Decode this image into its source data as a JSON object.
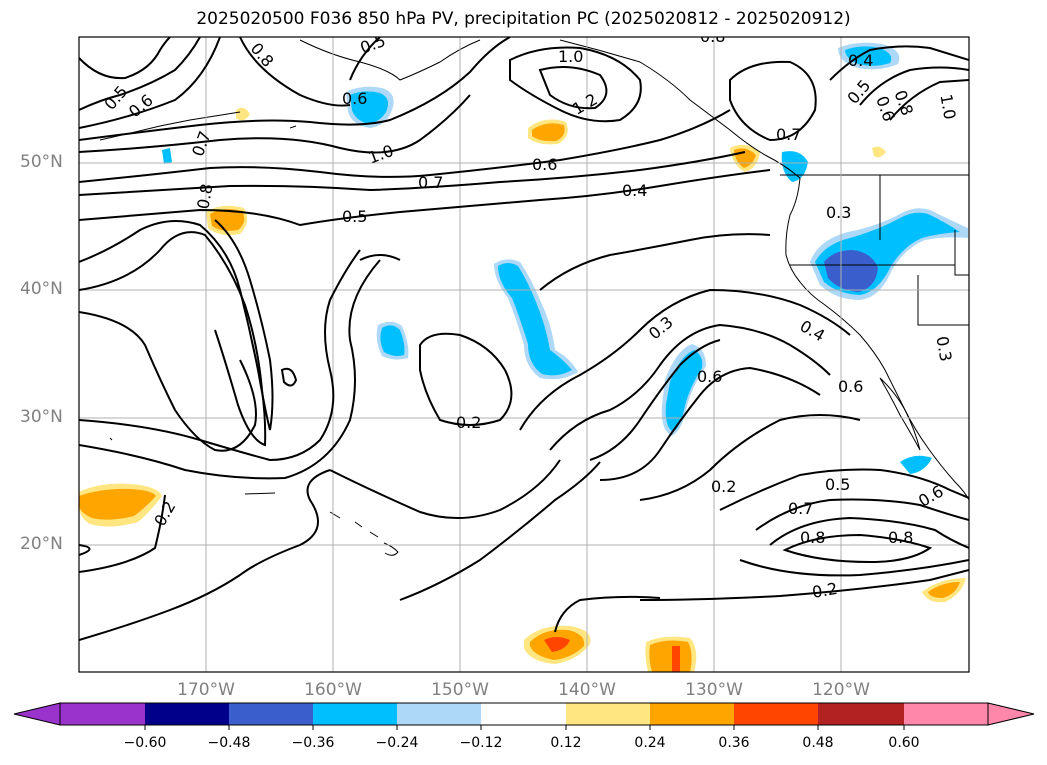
{
  "title": "2025020500 F036 850 hPa PV, precipitation PC (2025020812 - 2025020912)",
  "lat_labels": [
    "50°N",
    "40°N",
    "30°N",
    "20°N"
  ],
  "lon_labels": [
    "170°W",
    "160°W",
    "150°W",
    "140°W",
    "130°W",
    "120°W"
  ],
  "colorbar": {
    "ticks": [
      "−0.60",
      "−0.48",
      "−0.36",
      "−0.24",
      "−0.12",
      "0.12",
      "0.24",
      "0.36",
      "0.48",
      "0.60"
    ],
    "colors": [
      "#9933cc",
      "#00008b",
      "#3a5fcd",
      "#00bfff",
      "#add8f7",
      "#ffffff",
      "#ffe680",
      "#ffa500",
      "#ff4500",
      "#b22222",
      "#ff88aa"
    ]
  },
  "contour_labels": [
    "0.5",
    "0.6",
    "0.8",
    "0.7",
    "0.6",
    "0.5",
    "1.0",
    "1.2",
    "0.8",
    "0.4",
    "0.5",
    "0.8",
    "1.0",
    "0.6",
    "0.7",
    "0.8",
    "0.7",
    "0.5",
    "1.0",
    "0.6",
    "0.4",
    "0.3",
    "0.3",
    "0.4",
    "0.6",
    "0.6",
    "0.3",
    "0.2",
    "0.2",
    "0.5",
    "0.7",
    "0.8",
    "0.8",
    "0.6",
    "0.2",
    "0.2"
  ]
}
